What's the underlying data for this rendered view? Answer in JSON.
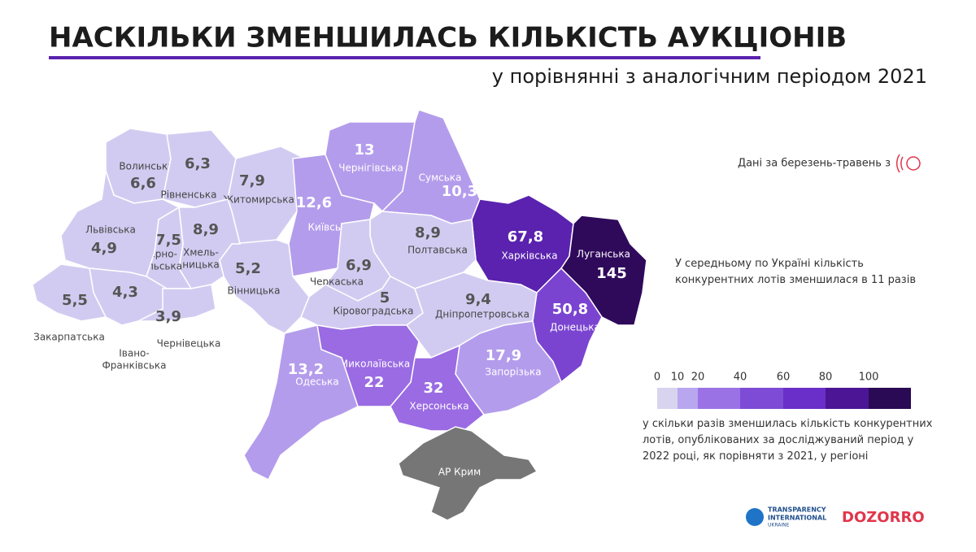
{
  "header": {
    "title": "НАСКІЛЬКИ ЗМЕНШИЛАСЬ КІЛЬКІСТЬ АУКЦІОНІВ",
    "subtitle": "у порівнянні з аналогічним періодом 2021"
  },
  "note": "Дані за березень-травень з",
  "summary": "У середньому по Україні кількість конкурентних лотів зменшилася в 11 разів",
  "legend": {
    "ticks": [
      "0",
      "10",
      "20",
      "40",
      "60",
      "80",
      "100"
    ],
    "colors": [
      "#d8d3ef",
      "#b8a6ee",
      "#9b72e6",
      "#7d4bd6",
      "#6a2fc8",
      "#4c1596",
      "#2b0a55"
    ],
    "description": "у скільки разів зменшилась кількість конкурентних лотів, опублікованих за досліджуваний період у 2022 році, як порівняти з 2021, у регіоні"
  },
  "regions": [
    {
      "name": [
        "Волинська"
      ],
      "value": "6,6",
      "color": "#d2cbf1",
      "label_color": "#444"
    },
    {
      "name": [
        "Рівненська"
      ],
      "value": "6,3",
      "color": "#d2cbf1",
      "label_color": "#444"
    },
    {
      "name": [
        "Житомирська"
      ],
      "value": "7,9",
      "color": "#d2cbf1",
      "label_color": "#444"
    },
    {
      "name": [
        "Київська"
      ],
      "value": "12,6",
      "color": "#b49cec",
      "label_color": "#fff"
    },
    {
      "name": [
        "Чернігівська"
      ],
      "value": "13",
      "color": "#b49cec",
      "label_color": "#fff"
    },
    {
      "name": [
        "Сумська"
      ],
      "value": "10,3",
      "color": "#b49cec",
      "label_color": "#fff"
    },
    {
      "name": [
        "Харківська"
      ],
      "value": "67,8",
      "color": "#5a22ae",
      "label_color": "#fff"
    },
    {
      "name": [
        "Луганська"
      ],
      "value": "145",
      "color": "#2f0a5b",
      "label_color": "#fff"
    },
    {
      "name": [
        "Донецька"
      ],
      "value": "50,8",
      "color": "#7a44d1",
      "label_color": "#fff"
    },
    {
      "name": [
        "Полтавська"
      ],
      "value": "8,9",
      "color": "#d2cbf1",
      "label_color": "#444"
    },
    {
      "name": [
        "Черкаська"
      ],
      "value": "6,9",
      "color": "#d2cbf1",
      "label_color": "#444"
    },
    {
      "name": [
        "Кіровоградська"
      ],
      "value": "5",
      "color": "#d2cbf1",
      "label_color": "#444"
    },
    {
      "name": [
        "Дніпропетровська"
      ],
      "value": "9,4",
      "color": "#d2cbf1",
      "label_color": "#444"
    },
    {
      "name": [
        "Запорізька"
      ],
      "value": "17,9",
      "color": "#b49cec",
      "label_color": "#fff"
    },
    {
      "name": [
        "Херсонська"
      ],
      "value": "32",
      "color": "#9a6be3",
      "label_color": "#fff"
    },
    {
      "name": [
        "Миколаївська"
      ],
      "value": "22",
      "color": "#9a6be3",
      "label_color": "#fff"
    },
    {
      "name": [
        "Одеська"
      ],
      "value": "13,2",
      "color": "#b49cec",
      "label_color": "#fff"
    },
    {
      "name": [
        "Вінницька"
      ],
      "value": "5,2",
      "color": "#d2cbf1",
      "label_color": "#444"
    },
    {
      "name": [
        "Хмель-",
        "ницька"
      ],
      "value": "8,9",
      "color": "#d2cbf1",
      "label_color": "#444"
    },
    {
      "name": [
        "Терно-",
        "пільська"
      ],
      "value": "7,5",
      "color": "#d2cbf1",
      "label_color": "#444"
    },
    {
      "name": [
        "Львівська"
      ],
      "value": "4,9",
      "color": "#d2cbf1",
      "label_color": "#444"
    },
    {
      "name": [
        "Івано-",
        "Франківська"
      ],
      "value": "4,3",
      "color": "#d2cbf1",
      "label_color": "#444"
    },
    {
      "name": [
        "Чернівецька"
      ],
      "value": "3,9",
      "color": "#d2cbf1",
      "label_color": "#444"
    },
    {
      "name": [
        "Закарпатська"
      ],
      "value": "5,5",
      "color": "#d2cbf1",
      "label_color": "#444"
    }
  ],
  "crimea": {
    "name": "АР Крим",
    "color": "#767676"
  },
  "logos": {
    "ti": [
      "TRANSPARENCY",
      "INTERNATIONAL",
      "UKRAINE"
    ],
    "dozorro": "DOZORRO"
  }
}
